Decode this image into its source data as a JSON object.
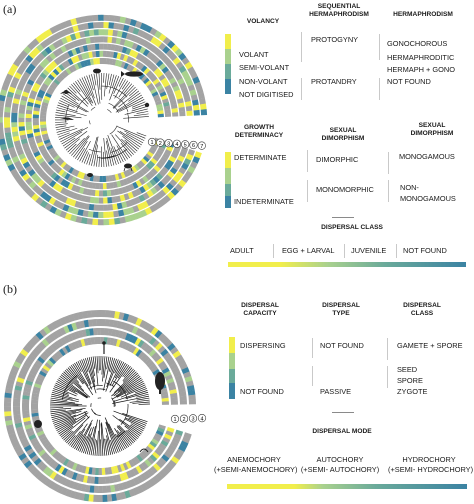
{
  "colors": {
    "yellow": "#f1ee4b",
    "lightgreen": "#a9d18e",
    "teal": "#6aaa9a",
    "blue": "#3b83a3",
    "grey": "#a3a3a3"
  },
  "panel_a": {
    "label": "(a)",
    "volancy": {
      "header": "VOLANCY",
      "items": [
        "VOLANT",
        "SEMI-VOLANT",
        "NON-VOLANT",
        "NOT DIGITISED"
      ]
    },
    "seq_herm": {
      "header": "SEQUENTIAL HERMAPHRODISM",
      "items": [
        "PROTOGYNY",
        "PROTANDRY"
      ]
    },
    "hermaphrodism": {
      "header": "HERMAPHRODISM",
      "items": [
        "GONOCHOROUS",
        "HERMAPHRODITIC",
        "HERMAPH + GONO",
        "NOT FOUND"
      ]
    },
    "growth": {
      "header": "GROWTH DETERMINACY",
      "items": [
        "DETERMINATE",
        "INDETERMINATE"
      ]
    },
    "sex_dim": {
      "header": "SEXUAL DIMORPHISM",
      "items": [
        "DIMORPHIC",
        "MONOMORPHIC"
      ]
    },
    "sex_dim2": {
      "header": "SEXUAL DIMORPHISM",
      "items": [
        "MONOGAMOUS",
        "NON-MONOGAMOUS"
      ]
    },
    "dispersal_class": {
      "header": "DISPERSAL CLASS",
      "items": [
        "ADULT",
        "EGG + LARVAL",
        "JUVENILE",
        "NOT FOUND"
      ]
    },
    "ring_numbers": [
      "1",
      "2",
      "3",
      "4",
      "5",
      "6",
      "7"
    ]
  },
  "panel_b": {
    "label": "(b)",
    "capacity": {
      "header": "DISPERSAL CAPACITY",
      "items": [
        "DISPERSING",
        "NOT FOUND"
      ]
    },
    "type": {
      "header": "DISPERSAL TYPE",
      "items": [
        "NOT FOUND",
        "PASSIVE"
      ]
    },
    "class": {
      "header": "DISPERSAL CLASS",
      "items": [
        "GAMETE + SPORE",
        "SEED",
        "SPORE",
        "ZYGOTE"
      ]
    },
    "mode": {
      "header": "DISPERSAL MODE",
      "items": [
        {
          "name": "ANEMOCHORY",
          "sub": "(+SEMI-ANEMOCHORY)"
        },
        {
          "name": "AUTOCHORY",
          "sub": "(+SEMI- AUTOCHORY)"
        },
        {
          "name": "HYDROCHORY",
          "sub": "(+SEMI- HYDROCHORY)"
        }
      ]
    },
    "ring_numbers": [
      "1",
      "2",
      "3",
      "4"
    ]
  }
}
